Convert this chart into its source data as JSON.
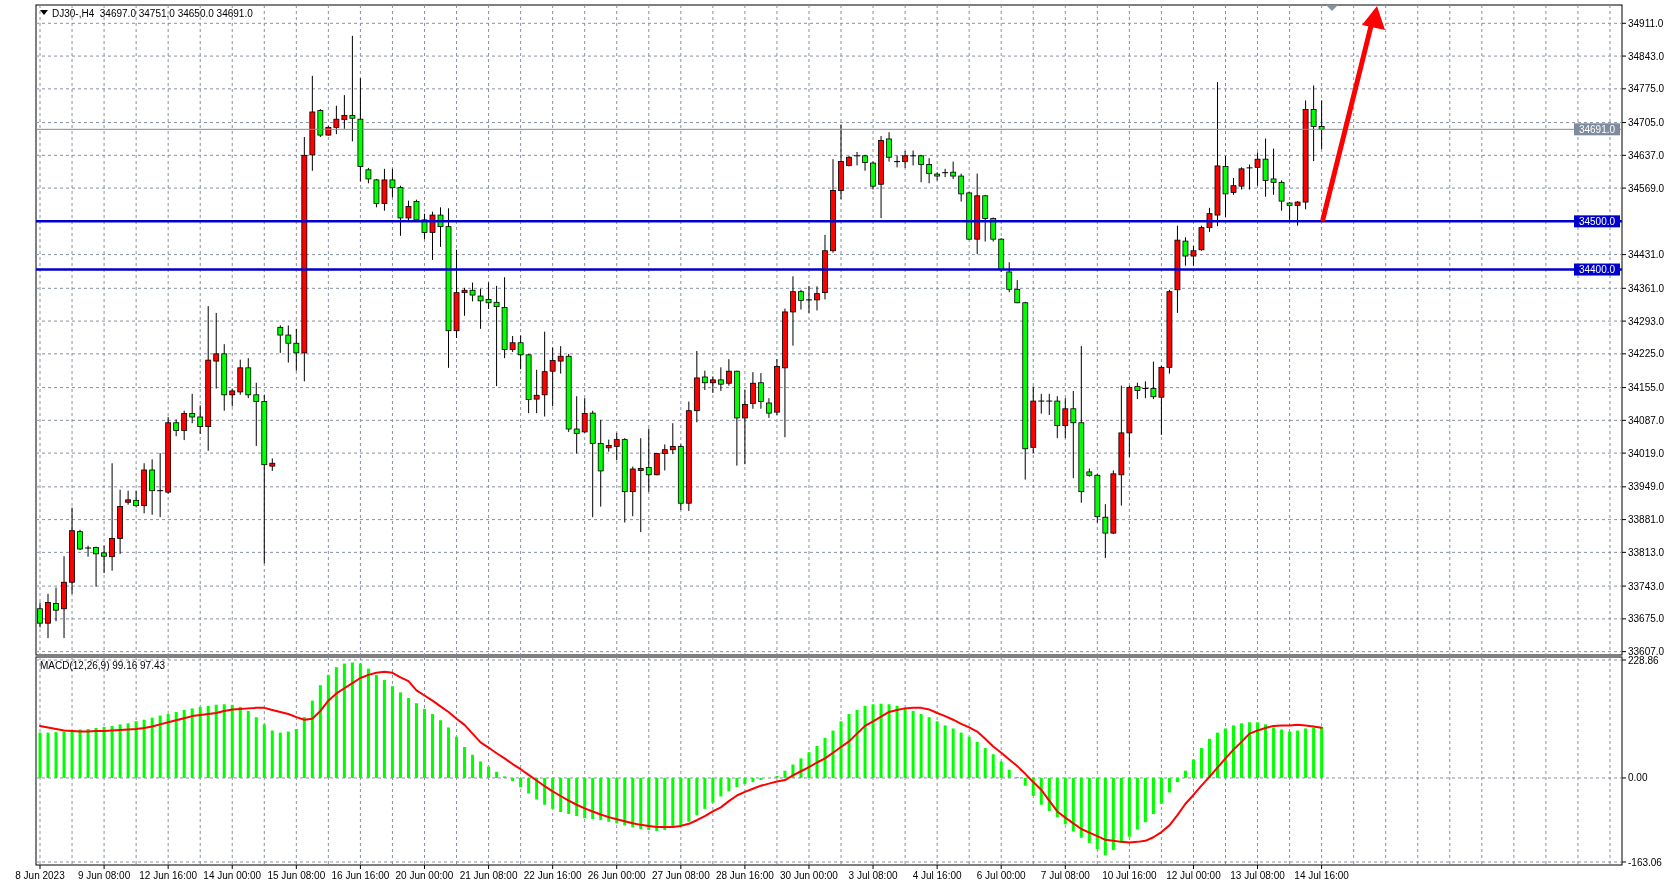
{
  "chart_data": [
    {
      "type": "candlestick",
      "title": "DJ30-,H4  34697.0 34751.0 34650.0 34691.0",
      "categories": [
        null,
        null,
        null,
        null,
        null,
        null,
        null,
        null,
        null,
        null,
        null,
        null,
        null,
        null,
        null,
        null,
        null,
        null,
        null,
        null,
        null,
        null,
        null,
        null,
        null,
        null,
        null,
        null,
        null,
        null,
        null,
        null,
        null,
        null,
        null,
        null,
        null,
        null,
        null,
        null,
        null,
        null,
        null,
        null,
        null,
        null,
        null,
        null,
        null,
        null,
        null,
        null,
        null,
        null,
        null,
        null,
        null,
        null,
        null,
        null,
        null,
        null,
        null,
        null,
        null,
        null,
        null,
        null,
        null,
        null,
        null,
        null,
        null,
        null,
        null,
        null,
        null,
        null,
        null,
        null,
        null,
        null,
        null,
        null,
        null,
        null,
        null,
        null,
        null,
        null,
        null,
        null,
        null,
        null,
        null,
        null,
        null,
        null,
        null,
        null,
        null,
        null,
        null,
        null,
        null,
        null,
        null,
        null,
        null,
        null,
        null,
        null,
        null,
        null,
        null,
        null,
        null,
        null,
        null,
        null,
        null,
        null,
        null,
        null,
        null,
        null,
        null,
        null,
        null,
        null,
        null,
        null,
        null,
        null,
        null,
        null,
        null,
        null,
        null,
        null,
        null,
        null,
        null,
        null,
        null,
        null,
        null,
        null,
        null,
        null,
        null,
        null,
        null,
        null,
        null,
        null,
        null,
        null,
        null,
        null,
        null,
        null,
        null,
        null,
        null,
        null,
        null,
        null,
        null,
        null,
        null,
        null,
        null,
        null,
        null,
        null,
        null,
        null,
        null,
        null,
        null,
        null,
        null,
        null,
        null,
        null,
        null,
        null,
        null,
        null,
        null,
        null,
        null,
        null,
        null,
        null,
        null,
        null
      ],
      "ohlc": [
        [
          33696,
          33709,
          33657,
          33666
        ],
        [
          33666,
          33727,
          33635,
          33709
        ],
        [
          33707,
          33740,
          33670,
          33693
        ],
        [
          33696,
          33805,
          33635,
          33751
        ],
        [
          33751,
          33906,
          33727,
          33858
        ],
        [
          33856,
          33860,
          33818,
          33820
        ],
        [
          33822,
          33827,
          33804,
          33822
        ],
        [
          33823,
          33825,
          33742,
          33810
        ],
        [
          33812,
          33827,
          33770,
          33805
        ],
        [
          33804,
          33998,
          33775,
          33842
        ],
        [
          33842,
          33943,
          33810,
          33908
        ],
        [
          33917,
          33941,
          33912,
          33922
        ],
        [
          33921,
          33941,
          33906,
          33910
        ],
        [
          33910,
          33998,
          33894,
          33984
        ],
        [
          33984,
          34006,
          33891,
          33941
        ],
        [
          33941,
          34019,
          33886,
          33941
        ],
        [
          33938,
          34094,
          33935,
          34082
        ],
        [
          34082,
          34089,
          34054,
          34066
        ],
        [
          34066,
          34107,
          34046,
          34101
        ],
        [
          34101,
          34142,
          34081,
          34094
        ],
        [
          34094,
          34118,
          34059,
          34074
        ],
        [
          34074,
          34324,
          34024,
          34212
        ],
        [
          34210,
          34310,
          34153,
          34225
        ],
        [
          34225,
          34245,
          34107,
          34140
        ],
        [
          34140,
          34153,
          34116,
          34148
        ],
        [
          34146,
          34213,
          34140,
          34196
        ],
        [
          34196,
          34216,
          34133,
          34140
        ],
        [
          34140,
          34165,
          34034,
          34126
        ],
        [
          34126,
          34140,
          33790,
          33995
        ],
        [
          33992,
          34008,
          33982,
          33998
        ],
        [
          34280,
          34284,
          34227,
          34264
        ],
        [
          34264,
          34284,
          34207,
          34247
        ],
        [
          34247,
          34277,
          34190,
          34227
        ],
        [
          34227,
          34675,
          34168,
          34637
        ],
        [
          34638,
          34802,
          34605,
          34727
        ],
        [
          34730,
          34733,
          34675,
          34679
        ],
        [
          34679,
          34698,
          34678,
          34695
        ],
        [
          34695,
          34740,
          34681,
          34712
        ],
        [
          34711,
          34762,
          34692,
          34720
        ],
        [
          34720,
          34885,
          34666,
          34714
        ],
        [
          34712,
          34797,
          34583,
          34614
        ],
        [
          34607,
          34611,
          34579,
          34588
        ],
        [
          34586,
          34588,
          34529,
          34537
        ],
        [
          34537,
          34609,
          34522,
          34586
        ],
        [
          34586,
          34609,
          34550,
          34570
        ],
        [
          34570,
          34574,
          34470,
          34507
        ],
        [
          34507,
          34543,
          34502,
          34531
        ],
        [
          34541,
          34545,
          34500,
          34503
        ],
        [
          34503,
          34516,
          34463,
          34477
        ],
        [
          34477,
          34520,
          34420,
          34513
        ],
        [
          34513,
          34529,
          34447,
          34489
        ],
        [
          34489,
          34527,
          34196,
          34273
        ],
        [
          34273,
          34441,
          34258,
          34352
        ],
        [
          34352,
          34362,
          34304,
          34357
        ],
        [
          34357,
          34373,
          34334,
          34347
        ],
        [
          34345,
          34360,
          34277,
          34335
        ],
        [
          34338,
          34373,
          34318,
          34331
        ],
        [
          34332,
          34366,
          34158,
          34323
        ],
        [
          34321,
          34384,
          34216,
          34234
        ],
        [
          34234,
          34262,
          34229,
          34248
        ],
        [
          34248,
          34263,
          34193,
          34223
        ],
        [
          34223,
          34225,
          34102,
          34130
        ],
        [
          34131,
          34192,
          34102,
          34139
        ],
        [
          34140,
          34271,
          34095,
          34188
        ],
        [
          34189,
          34238,
          34116,
          34211
        ],
        [
          34210,
          34241,
          34184,
          34220
        ],
        [
          34220,
          34225,
          34063,
          34069
        ],
        [
          34069,
          34137,
          34018,
          34060
        ],
        [
          34063,
          34133,
          34061,
          34101
        ],
        [
          34102,
          34107,
          33886,
          34039
        ],
        [
          34039,
          34088,
          33908,
          33982
        ],
        [
          34030,
          34047,
          34022,
          34035
        ],
        [
          34033,
          34061,
          34004,
          34047
        ],
        [
          34047,
          34050,
          33875,
          33939
        ],
        [
          33939,
          33991,
          33888,
          33986
        ],
        [
          33983,
          34050,
          33855,
          33987
        ],
        [
          33989,
          34070,
          33939,
          33974
        ],
        [
          33974,
          34019,
          33973,
          34018
        ],
        [
          34018,
          34037,
          33983,
          34026
        ],
        [
          34026,
          34081,
          34017,
          34033
        ],
        [
          34033,
          34037,
          33901,
          33915
        ],
        [
          33915,
          34126,
          33899,
          34107
        ],
        [
          34107,
          34231,
          34083,
          34175
        ],
        [
          34177,
          34190,
          34150,
          34165
        ],
        [
          34165,
          34178,
          34144,
          34171
        ],
        [
          34171,
          34197,
          34148,
          34162
        ],
        [
          34164,
          34214,
          34159,
          34189
        ],
        [
          34189,
          34190,
          33993,
          34092
        ],
        [
          34092,
          34150,
          33996,
          34120
        ],
        [
          34122,
          34187,
          34111,
          34164
        ],
        [
          34165,
          34185,
          34111,
          34126
        ],
        [
          34123,
          34133,
          34092,
          34102
        ],
        [
          34104,
          34214,
          34098,
          34199
        ],
        [
          34196,
          34319,
          34052,
          34312
        ],
        [
          34312,
          34386,
          34242,
          34354
        ],
        [
          34354,
          34358,
          34317,
          34336
        ],
        [
          34337,
          34366,
          34310,
          34337
        ],
        [
          34337,
          34365,
          34315,
          34350
        ],
        [
          34352,
          34472,
          34338,
          34439
        ],
        [
          34439,
          34629,
          34435,
          34564
        ],
        [
          34564,
          34701,
          34546,
          34624
        ],
        [
          34616,
          34636,
          34614,
          34633
        ],
        [
          34636,
          34644,
          34616,
          34636
        ],
        [
          34636,
          34638,
          34605,
          34622
        ],
        [
          34621,
          34624,
          34566,
          34573
        ],
        [
          34577,
          34677,
          34507,
          34668
        ],
        [
          34671,
          34685,
          34624,
          34633
        ],
        [
          34624,
          34637,
          34612,
          34624
        ],
        [
          34624,
          34646,
          34611,
          34636
        ],
        [
          34636,
          34647,
          34616,
          34636
        ],
        [
          34636,
          34638,
          34581,
          34618
        ],
        [
          34618,
          34631,
          34579,
          34599
        ],
        [
          34598,
          34602,
          34585,
          34594
        ],
        [
          34601,
          34609,
          34592,
          34601
        ],
        [
          34602,
          34624,
          34588,
          34594
        ],
        [
          34594,
          34599,
          34541,
          34557
        ],
        [
          34559,
          34561,
          34461,
          34463
        ],
        [
          34463,
          34599,
          34432,
          34553
        ],
        [
          34553,
          34555,
          34458,
          34506
        ],
        [
          34506,
          34508,
          34458,
          34463
        ],
        [
          34463,
          34465,
          34395,
          34400
        ],
        [
          34395,
          34415,
          34353,
          34359
        ],
        [
          34359,
          34378,
          34330,
          34331
        ],
        [
          34331,
          34333,
          33964,
          34028
        ],
        [
          34031,
          34157,
          34019,
          34127
        ],
        [
          34127,
          34142,
          34101,
          34127
        ],
        [
          34127,
          34142,
          34098,
          34127
        ],
        [
          34127,
          34137,
          34050,
          34076
        ],
        [
          34076,
          34133,
          34050,
          34111
        ],
        [
          34111,
          34148,
          33967,
          34082
        ],
        [
          34082,
          34241,
          33916,
          33939
        ],
        [
          33980,
          33987,
          33970,
          33973
        ],
        [
          33973,
          33976,
          33875,
          33887
        ],
        [
          33886,
          33913,
          33801,
          33853
        ],
        [
          33853,
          33983,
          33851,
          33976
        ],
        [
          33974,
          34159,
          33910,
          34061
        ],
        [
          34061,
          34159,
          34011,
          34155
        ],
        [
          34157,
          34165,
          34131,
          34149
        ],
        [
          34153,
          34168,
          34133,
          34153
        ],
        [
          34153,
          34209,
          34131,
          34136
        ],
        [
          34135,
          34200,
          34057,
          34197
        ],
        [
          34197,
          34358,
          34184,
          34354
        ],
        [
          34358,
          34491,
          34310,
          34461
        ],
        [
          34459,
          34467,
          34408,
          34428
        ],
        [
          34428,
          34449,
          34408,
          34439
        ],
        [
          34441,
          34491,
          34439,
          34487
        ],
        [
          34487,
          34528,
          34478,
          34516
        ],
        [
          34513,
          34789,
          34490,
          34615
        ],
        [
          34614,
          34636,
          34509,
          34557
        ],
        [
          34560,
          34590,
          34555,
          34574
        ],
        [
          34573,
          34612,
          34566,
          34609
        ],
        [
          34611,
          34618,
          34566,
          34611
        ],
        [
          34612,
          34643,
          34574,
          34629
        ],
        [
          34629,
          34672,
          34551,
          34585
        ],
        [
          34588,
          34651,
          34555,
          34581
        ],
        [
          34581,
          34585,
          34522,
          34542
        ],
        [
          34538,
          34540,
          34503,
          34533
        ],
        [
          34533,
          34542,
          34491,
          34540
        ],
        [
          34540,
          34751,
          34525,
          34732
        ],
        [
          34732,
          34782,
          34625,
          34697
        ],
        [
          34697,
          34751,
          34650,
          34691
        ],
        null,
        null,
        null,
        null,
        null,
        null,
        null,
        null,
        null,
        null,
        null,
        null,
        null,
        null,
        null,
        null,
        null,
        null,
        null,
        null,
        null,
        null,
        null,
        null,
        null,
        null,
        null,
        null,
        null,
        null,
        null,
        null,
        null,
        null,
        null,
        null,
        null
      ],
      "ylim": [
        33600,
        34949
      ],
      "yticks": [
        {
          "value": 34911,
          "label": "34911.0"
        },
        {
          "value": 34843,
          "label": "34843.0"
        },
        {
          "value": 34775,
          "label": "34775.0"
        },
        {
          "value": 34705,
          "label": "34705.0"
        },
        {
          "value": 34637,
          "label": "34637.0"
        },
        {
          "value": 34569,
          "label": "34569.0"
        },
        {
          "value": 34431,
          "label": "34431.0"
        },
        {
          "value": 34361,
          "label": "34361.0"
        },
        {
          "value": 34293,
          "label": "34293.0"
        },
        {
          "value": 34225,
          "label": "34225.0"
        },
        {
          "value": 34155,
          "label": "34155.0"
        },
        {
          "value": 34087,
          "label": "34087.0"
        },
        {
          "value": 34019,
          "label": "34019.0"
        },
        {
          "value": 33949,
          "label": "33949.0"
        },
        {
          "value": 33881,
          "label": "33881.0"
        },
        {
          "value": 33813,
          "label": "33813.0"
        },
        {
          "value": 33743,
          "label": "33743.0"
        },
        {
          "value": 33675,
          "label": "33675.0"
        },
        {
          "value": 33607,
          "label": "33607.0"
        }
      ],
      "ref_lines": [
        {
          "axis": "y",
          "value": 34691,
          "label": "34691.0",
          "color": "#7f8c9e"
        },
        {
          "axis": "y",
          "value": 34500,
          "label": "34500.0",
          "color": "#0000cc"
        },
        {
          "axis": "y",
          "value": 34400,
          "label": "34400.0",
          "color": "#0000cc"
        }
      ],
      "grid": true,
      "tick_labels": "y"
    },
    {
      "type": "bar",
      "title": "MACD(12,26,9) 99.16 97.43",
      "categories": [
        "8 Jun 2023",
        null,
        null,
        null,
        null,
        null,
        null,
        null,
        "9 Jun 08:00",
        null,
        null,
        null,
        null,
        null,
        null,
        null,
        "12 Jun 16:00",
        null,
        null,
        null,
        null,
        null,
        null,
        null,
        "14 Jun 00:00",
        null,
        null,
        null,
        null,
        null,
        null,
        null,
        "15 Jun 08:00",
        null,
        null,
        null,
        null,
        null,
        null,
        null,
        "16 Jun 16:00",
        null,
        null,
        null,
        null,
        null,
        null,
        null,
        "20 Jun 00:00",
        null,
        null,
        null,
        null,
        null,
        null,
        null,
        "21 Jun 08:00",
        null,
        null,
        null,
        null,
        null,
        null,
        null,
        "22 Jun 16:00",
        null,
        null,
        null,
        null,
        null,
        null,
        null,
        "26 Jun 00:00",
        null,
        null,
        null,
        null,
        null,
        null,
        null,
        "27 Jun 08:00",
        null,
        null,
        null,
        null,
        null,
        null,
        null,
        "28 Jun 16:00",
        null,
        null,
        null,
        null,
        null,
        null,
        null,
        "30 Jun 00:00",
        null,
        null,
        null,
        null,
        null,
        null,
        null,
        "3 Jul 08:00",
        null,
        null,
        null,
        null,
        null,
        null,
        null,
        "4 Jul 16:00",
        null,
        null,
        null,
        null,
        null,
        null,
        null,
        "6 Jul 00:00",
        null,
        null,
        null,
        null,
        null,
        null,
        null,
        "7 Jul 08:00",
        null,
        null,
        null,
        null,
        null,
        null,
        null,
        "10 Jul 16:00",
        null,
        null,
        null,
        null,
        null,
        null,
        null,
        "12 Jul 00:00",
        null,
        null,
        null,
        null,
        null,
        null,
        null,
        "13 Jul 08:00",
        null,
        null,
        null,
        null,
        null,
        null,
        null,
        "14 Jul 16:00",
        null,
        null,
        null,
        null,
        null,
        null,
        null,
        null,
        null,
        null,
        null,
        null,
        null,
        null,
        null,
        null,
        null,
        null,
        null,
        null,
        null,
        null,
        null,
        null,
        null,
        null,
        null,
        null,
        null,
        null,
        null,
        null,
        null,
        null,
        null,
        null,
        null
      ],
      "series": [
        {
          "color": "#00ff00",
          "values": [
            88,
            88,
            89,
            90,
            92,
            94,
            95,
            97,
            99,
            101,
            104,
            106,
            110,
            113,
            117,
            121,
            124,
            128,
            132,
            135,
            138,
            140,
            142,
            143,
            142,
            138,
            130,
            118,
            104,
            92,
            88,
            90,
            95,
            118,
            150,
            180,
            200,
            215,
            222,
            224,
            222,
            212,
            200,
            190,
            178,
            166,
            155,
            145,
            134,
            124,
            112,
            98,
            80,
            60,
            45,
            32,
            22,
            12,
            3,
            -6,
            -18,
            -30,
            -42,
            -52,
            -60,
            -66,
            -70,
            -74,
            -78,
            -80,
            -82,
            -85,
            -88,
            -92,
            -96,
            -99,
            -101,
            -103,
            -101,
            -97,
            -93,
            -85,
            -72,
            -60,
            -48,
            -36,
            -26,
            -18,
            -12,
            -8,
            -4,
            null,
            4,
            14,
            26,
            38,
            50,
            62,
            78,
            92,
            110,
            124,
            132,
            140,
            143,
            144,
            143,
            140,
            136,
            130,
            124,
            118,
            110,
            102,
            96,
            88,
            80,
            70,
            58,
            46,
            32,
            16,
            2,
            -15,
            -35,
            -52,
            -64,
            -76,
            -90,
            -104,
            -116,
            -126,
            -138,
            -150,
            -140,
            -126,
            -114,
            -100,
            -86,
            -70,
            -50,
            -28,
            -8,
            14,
            36,
            58,
            76,
            88,
            96,
            102,
            106,
            108,
            108,
            104,
            98,
            94,
            90,
            92,
            96,
            98,
            99.16,
            null,
            null,
            null,
            null,
            null,
            null,
            null,
            null,
            null,
            null,
            null,
            null,
            null,
            null,
            null,
            null,
            null,
            null,
            null,
            null,
            null,
            null,
            null,
            null,
            null,
            null,
            null,
            null,
            null,
            null,
            null,
            null,
            null,
            null,
            null,
            null,
            null
          ]
        },
        {
          "type": "line",
          "color": "#ff0000",
          "values": [
            101,
            98,
            95,
            92,
            91,
            90,
            90,
            91,
            91,
            92,
            93,
            94,
            95,
            97,
            100,
            104,
            108,
            112,
            116,
            120,
            122,
            124,
            126,
            130,
            133,
            134,
            135,
            136,
            136,
            132,
            128,
            124,
            118,
            113,
            115,
            130,
            150,
            164,
            174,
            184,
            194,
            200,
            204,
            206,
            204,
            195,
            188,
            170,
            160,
            150,
            139,
            128,
            115,
            103,
            86,
            69,
            59,
            48,
            38,
            27,
            17,
            6,
            -5,
            -16,
            -26,
            -35,
            -44,
            -52,
            -59,
            -65,
            -71,
            -76,
            -80,
            -84,
            -88,
            -91,
            -93,
            -95,
            -95,
            -95,
            -93,
            -89,
            -82,
            -74,
            -65,
            -57,
            -45,
            -34,
            -27,
            -21,
            -15,
            -11,
            -7,
            -4,
            5,
            13,
            21,
            30,
            38,
            49,
            60,
            71,
            86,
            101,
            110,
            119,
            128,
            132,
            135,
            136,
            136,
            133,
            126,
            120,
            113,
            105,
            98,
            90,
            76,
            61,
            49,
            36,
            23,
            8,
            -8,
            -23,
            -44,
            -65,
            -77,
            -88,
            -99,
            -106,
            -113,
            -120,
            -122,
            -124,
            -125,
            -124,
            -122,
            -115,
            -105,
            -92,
            -72,
            -50,
            -33,
            -15,
            2,
            20,
            38,
            55,
            70,
            86,
            92,
            97,
            101,
            102,
            102,
            103,
            102,
            100,
            97.43,
            null,
            null,
            null,
            null,
            null,
            null,
            null,
            null,
            null,
            null,
            null,
            null,
            null,
            null,
            null,
            null,
            null,
            null,
            null,
            null,
            null,
            null,
            null,
            null,
            null,
            null,
            null,
            null,
            null,
            null,
            null,
            null,
            null,
            null,
            null,
            null,
            null
          ]
        }
      ],
      "ylim": [
        -163.06,
        228.86
      ],
      "yticks": [
        228.86,
        {
          "value": 0,
          "label": "0.00"
        },
        -163.06
      ],
      "grid": true
    }
  ]
}
